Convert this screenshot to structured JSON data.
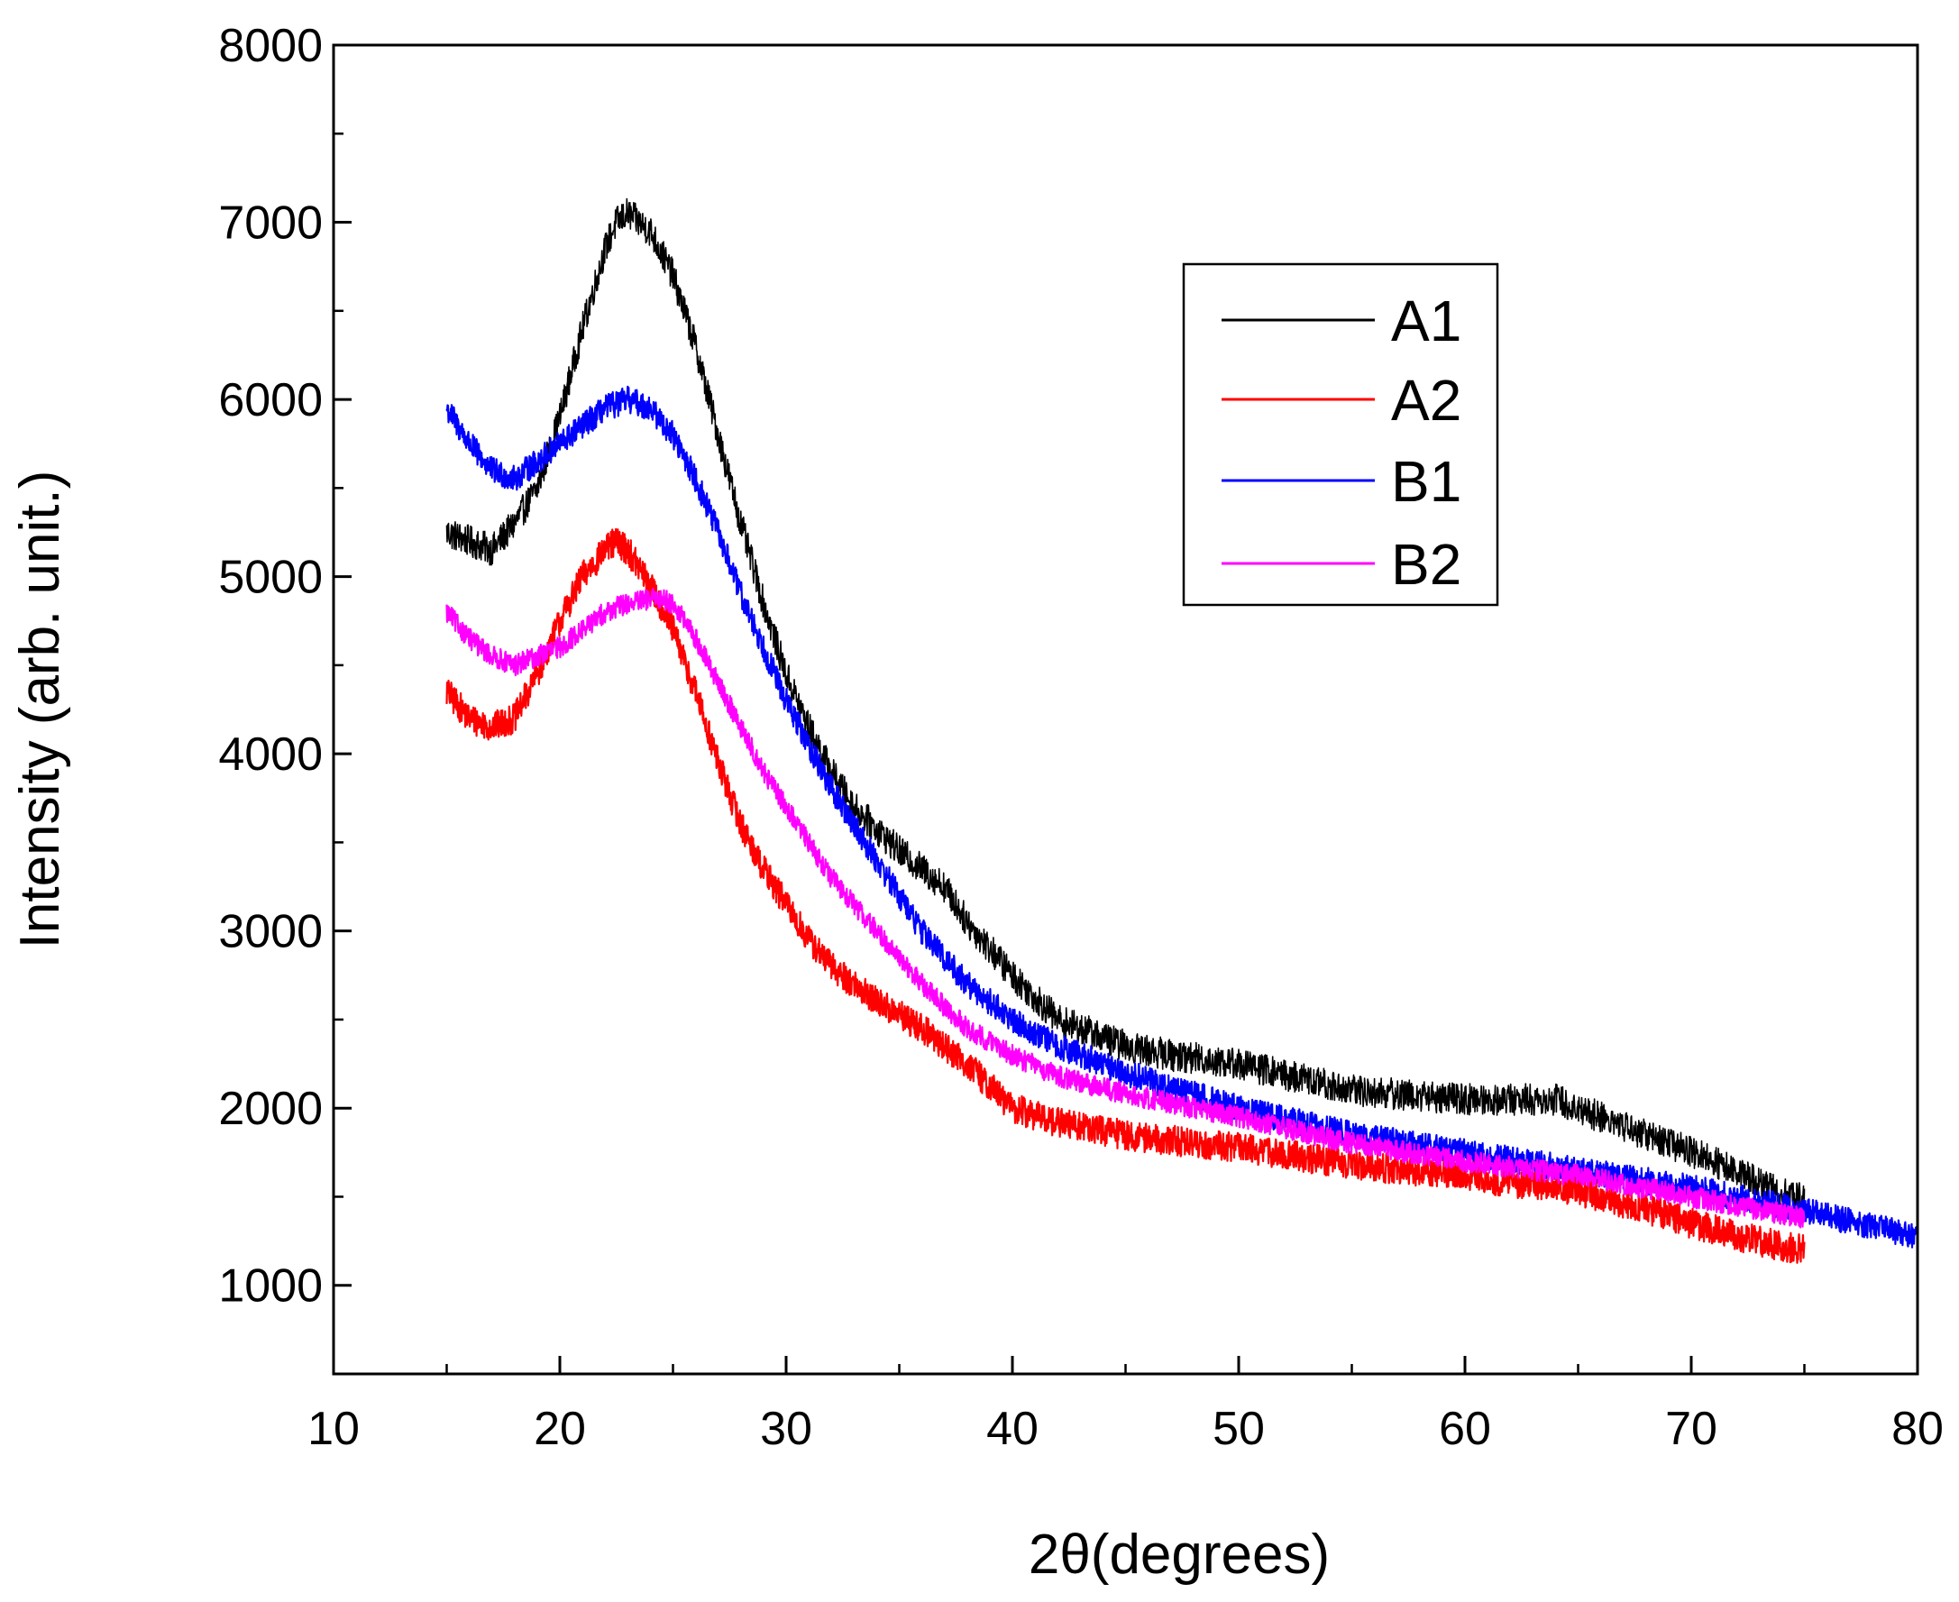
{
  "chart_data": {
    "type": "line",
    "title": "",
    "xlabel": "2θ(degrees)",
    "ylabel": "Intensity (arb. unit.)",
    "xlim": [
      10,
      80
    ],
    "ylim": [
      500,
      8000
    ],
    "xticks": [
      10,
      20,
      30,
      40,
      50,
      60,
      70,
      80
    ],
    "yticks": [
      1000,
      2000,
      3000,
      4000,
      5000,
      6000,
      7000,
      8000
    ],
    "xtick_labels": [
      "10",
      "20",
      "30",
      "40",
      "50",
      "60",
      "70",
      "80"
    ],
    "ytick_labels": [
      "1000",
      "2000",
      "3000",
      "4000",
      "5000",
      "6000",
      "7000",
      "8000"
    ],
    "grid": false,
    "legend_position": "top-right",
    "series": [
      {
        "name": "A1",
        "color": "#000000",
        "noise": 90,
        "x": [
          15,
          16,
          17,
          18,
          19,
          20,
          21,
          22,
          22.5,
          23,
          23.5,
          24,
          25,
          26,
          27,
          28,
          29,
          30,
          31,
          32,
          33,
          35,
          36,
          37,
          38,
          40,
          42,
          43,
          45,
          47,
          50,
          55,
          60,
          62,
          64,
          66,
          68,
          70,
          72,
          74,
          75
        ],
        "y": [
          5250,
          5200,
          5150,
          5300,
          5500,
          5900,
          6400,
          6850,
          7000,
          7050,
          7000,
          6950,
          6700,
          6300,
          5800,
          5300,
          4850,
          4450,
          4150,
          3900,
          3700,
          3450,
          3350,
          3250,
          3050,
          2750,
          2500,
          2450,
          2350,
          2300,
          2250,
          2100,
          2050,
          2050,
          2050,
          1950,
          1850,
          1750,
          1650,
          1520,
          1480
        ]
      },
      {
        "name": "A2",
        "color": "#ff0000",
        "noise": 85,
        "x": [
          15,
          16,
          17,
          18,
          19,
          20,
          21,
          22,
          22.5,
          23,
          23.5,
          24,
          25,
          26,
          27,
          28,
          29,
          30,
          31,
          32,
          34,
          36,
          38,
          40,
          42,
          44,
          46,
          50,
          55,
          60,
          62,
          64,
          66,
          68,
          70,
          72,
          74,
          75
        ],
        "y": [
          4350,
          4200,
          4150,
          4200,
          4450,
          4750,
          5000,
          5150,
          5200,
          5150,
          5050,
          4950,
          4700,
          4350,
          3950,
          3600,
          3350,
          3150,
          2950,
          2800,
          2600,
          2450,
          2250,
          2000,
          1920,
          1870,
          1830,
          1780,
          1680,
          1620,
          1580,
          1560,
          1500,
          1430,
          1350,
          1280,
          1220,
          1200
        ]
      },
      {
        "name": "B1",
        "color": "#0000ff",
        "noise": 75,
        "x": [
          15,
          16,
          17,
          18,
          19,
          20,
          21,
          22,
          23,
          24,
          25,
          26,
          27,
          28,
          29,
          30,
          31,
          32,
          33,
          34,
          35,
          36,
          38,
          40,
          42,
          45,
          50,
          55,
          60,
          65,
          70,
          75,
          80
        ],
        "y": [
          5950,
          5750,
          5600,
          5550,
          5650,
          5750,
          5850,
          5950,
          6000,
          5950,
          5800,
          5550,
          5250,
          4900,
          4600,
          4300,
          4050,
          3800,
          3600,
          3400,
          3200,
          3000,
          2700,
          2500,
          2350,
          2200,
          2000,
          1850,
          1750,
          1650,
          1550,
          1420,
          1280
        ]
      },
      {
        "name": "B2",
        "color": "#ff00ff",
        "noise": 60,
        "x": [
          15,
          16,
          17,
          18,
          19,
          20,
          21,
          22,
          23,
          24,
          24.5,
          25,
          26,
          27,
          28,
          29,
          30,
          31,
          32,
          33,
          34,
          35,
          36,
          38,
          40,
          42,
          45,
          50,
          55,
          60,
          65,
          70,
          75
        ],
        "y": [
          4800,
          4650,
          4550,
          4500,
          4550,
          4600,
          4700,
          4800,
          4850,
          4870,
          4880,
          4850,
          4650,
          4400,
          4150,
          3900,
          3700,
          3500,
          3300,
          3150,
          3000,
          2850,
          2700,
          2450,
          2300,
          2180,
          2080,
          1950,
          1800,
          1700,
          1620,
          1500,
          1380
        ]
      }
    ]
  }
}
